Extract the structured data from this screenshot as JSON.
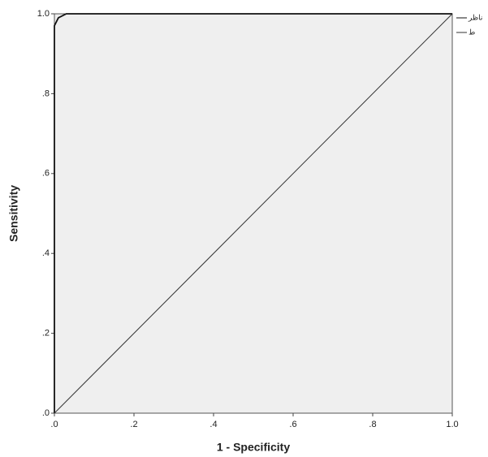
{
  "chart_data": {
    "type": "line",
    "xlabel": "1 - Specificity",
    "ylabel": "Sensitivity",
    "xlim": [
      0,
      1
    ],
    "ylim": [
      0,
      1
    ],
    "xticks": [
      {
        "value": 0,
        "label": ".0"
      },
      {
        "value": 0.2,
        "label": ".2"
      },
      {
        "value": 0.4,
        "label": ".4"
      },
      {
        "value": 0.6,
        "label": ".6"
      },
      {
        "value": 0.8,
        "label": ".8"
      },
      {
        "value": 1,
        "label": "1.0"
      }
    ],
    "yticks": [
      {
        "value": 0,
        "label": ".0"
      },
      {
        "value": 0.2,
        "label": ".2"
      },
      {
        "value": 0.4,
        "label": ".4"
      },
      {
        "value": 0.6,
        "label": ".6"
      },
      {
        "value": 0.8,
        "label": ".8"
      },
      {
        "value": 1,
        "label": "1.0"
      }
    ],
    "series": [
      {
        "name": "ناظر",
        "color": "#111111",
        "x": [
          0,
          0,
          0.01,
          0.03,
          1
        ],
        "values": [
          0,
          0.97,
          0.99,
          1,
          1
        ]
      },
      {
        "name": "ط",
        "color": "#333333",
        "x": [
          0,
          1
        ],
        "values": [
          0,
          1
        ]
      }
    ]
  }
}
